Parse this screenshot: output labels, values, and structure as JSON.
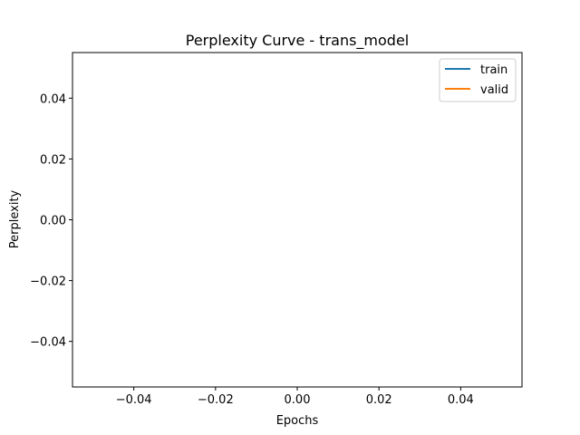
{
  "chart_data": {
    "type": "line",
    "title": "Perplexity Curve - trans_model",
    "xlabel": "Epochs",
    "ylabel": "Perplexity",
    "xlim": [
      -0.055,
      0.055
    ],
    "ylim": [
      -0.055,
      0.055
    ],
    "xticks": [
      -0.04,
      -0.02,
      0.0,
      0.02,
      0.04
    ],
    "xtick_labels": [
      "−0.04",
      "−0.02",
      "0.00",
      "0.02",
      "0.04"
    ],
    "yticks": [
      -0.04,
      -0.02,
      0.0,
      0.02,
      0.04
    ],
    "ytick_labels": [
      "−0.04",
      "−0.02",
      "0.00",
      "0.02",
      "0.04"
    ],
    "grid": false,
    "legend_position": "upper right",
    "series": [
      {
        "name": "train",
        "color": "#1f77b4",
        "x": [],
        "y": []
      },
      {
        "name": "valid",
        "color": "#ff7f0e",
        "x": [],
        "y": []
      }
    ]
  }
}
